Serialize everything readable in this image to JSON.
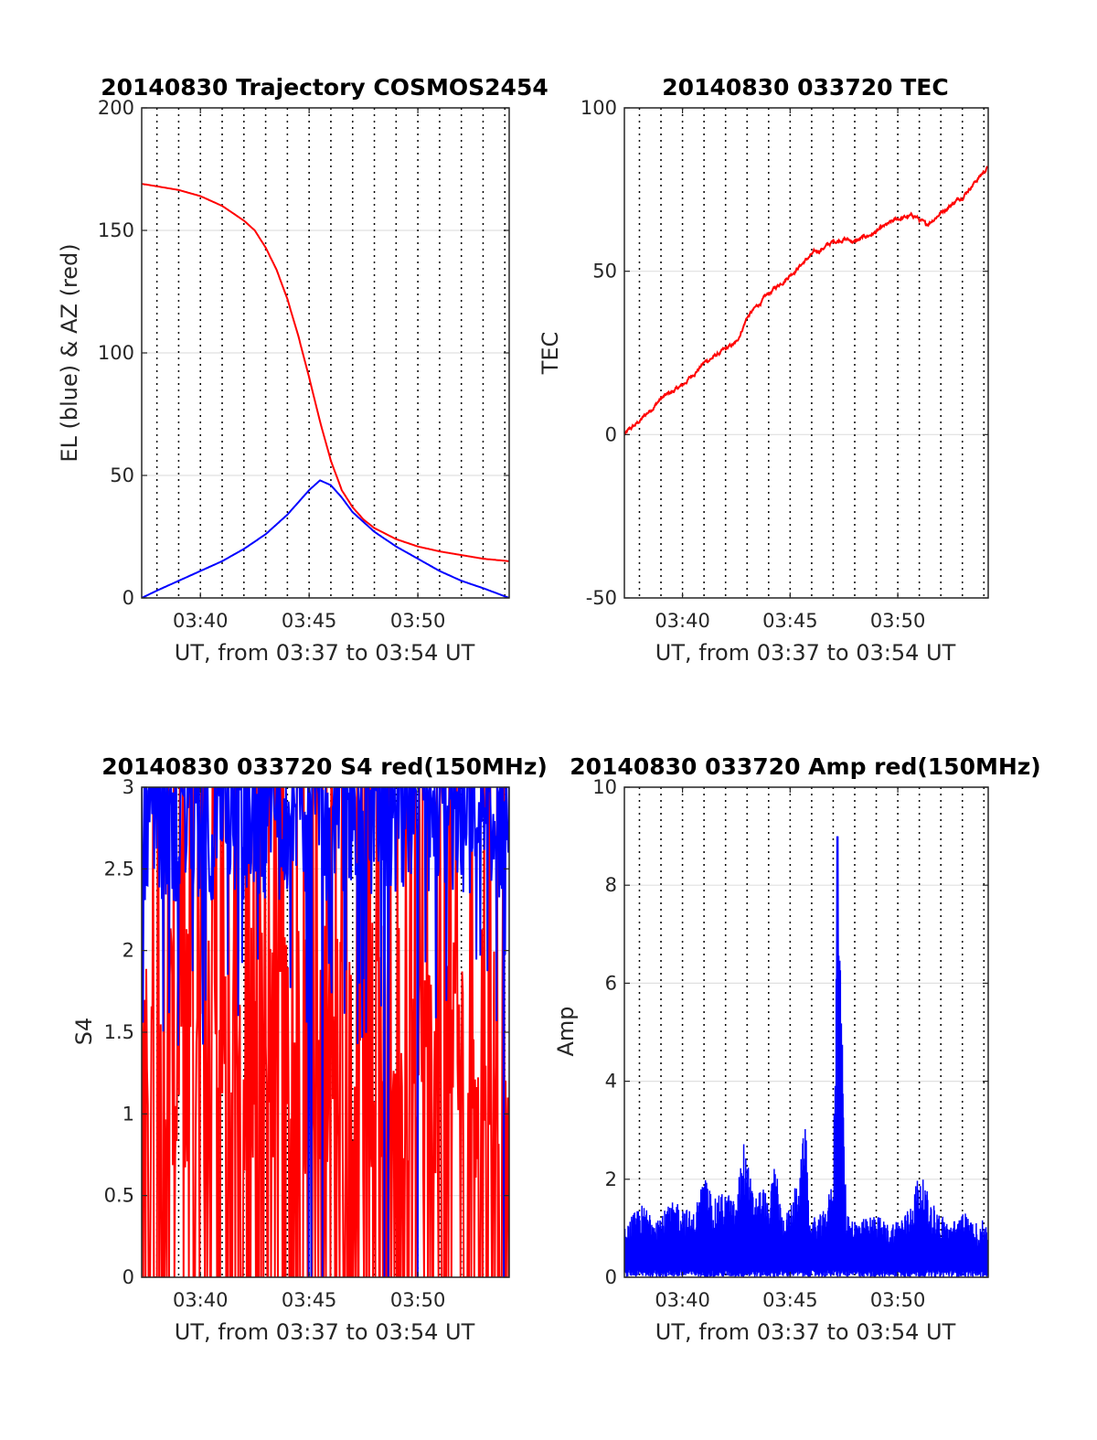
{
  "colors": {
    "el": "#0000ff",
    "az": "#ff0000",
    "tec": "#ff0000",
    "s4_red": "#ff0000",
    "s4_blue": "#0000ff",
    "amp": "#0000ff",
    "grid": "#e0e0e0",
    "dotted_grid": "#000000"
  },
  "chart_data": [
    {
      "type": "line",
      "title": "20140830 Trajectory COSMOS2454",
      "xlabel": "UT, from 03:37 to 03:54 UT",
      "ylabel": "EL (blue) & AZ (red)",
      "xlim": [
        37.3,
        54.2
      ],
      "ylim": [
        0,
        200
      ],
      "xticks": [
        40,
        45,
        50
      ],
      "xticklabels": [
        "03:40",
        "03:45",
        "03:50"
      ],
      "yticks": [
        0,
        50,
        100,
        150,
        200
      ],
      "yticklabels": [
        "0",
        "50",
        "100",
        "150",
        "200"
      ],
      "grid": "dotted vertical every minute, light horizontal at y ticks",
      "series": [
        {
          "color": "red",
          "x": [
            37.3,
            38,
            39,
            40,
            41,
            42,
            42.5,
            43,
            43.5,
            44,
            44.5,
            45,
            45.5,
            46,
            46.5,
            47,
            47.5,
            48,
            49,
            50,
            51,
            52,
            53,
            54.2
          ],
          "y": [
            169,
            168,
            166.5,
            164,
            160,
            154,
            150,
            143,
            134,
            122,
            107,
            90,
            72,
            56,
            44,
            37,
            32,
            28.5,
            24,
            21,
            19,
            17.5,
            16,
            15
          ]
        },
        {
          "color": "blue",
          "x": [
            37.3,
            38,
            39,
            40,
            41,
            42,
            43,
            44,
            44.5,
            45,
            45.5,
            46,
            46.5,
            47,
            48,
            49,
            50,
            51,
            52,
            53,
            54.2
          ],
          "y": [
            0,
            3,
            7,
            11,
            15,
            20,
            26,
            34,
            39,
            44,
            48,
            46,
            41,
            35,
            27,
            21,
            16,
            11,
            7,
            4,
            0
          ]
        }
      ]
    },
    {
      "type": "line",
      "title": "20140830 033720 TEC",
      "xlabel": "UT, from 03:37 to 03:54 UT",
      "ylabel": "TEC",
      "xlim": [
        37.3,
        54.2
      ],
      "ylim": [
        -50,
        100
      ],
      "xticks": [
        40,
        45,
        50
      ],
      "xticklabels": [
        "03:40",
        "03:45",
        "03:50"
      ],
      "yticks": [
        -50,
        0,
        50,
        100
      ],
      "yticklabels": [
        "-50",
        "0",
        "50",
        "100"
      ],
      "series": [
        {
          "color": "red",
          "x": [
            37.3,
            38,
            39,
            40,
            41,
            42,
            42.5,
            43,
            44,
            45,
            46,
            47,
            47.5,
            48,
            49,
            50,
            50.8,
            51.3,
            52,
            53,
            54.2
          ],
          "y": [
            0,
            4,
            11,
            15,
            22,
            26,
            28,
            36,
            43,
            49,
            55,
            59,
            60,
            59,
            62,
            66,
            67,
            64,
            68,
            73,
            82
          ]
        }
      ]
    },
    {
      "type": "line",
      "title": "20140830 033720 S4 red(150MHz)",
      "xlabel": "UT, from 03:37 to 03:54 UT",
      "ylabel": "S4",
      "xlim": [
        37.3,
        54.2
      ],
      "ylim": [
        0,
        3
      ],
      "xticks": [
        40,
        45,
        50
      ],
      "xticklabels": [
        "03:40",
        "03:45",
        "03:50"
      ],
      "yticks": [
        0,
        0.5,
        1,
        1.5,
        2,
        2.5,
        3
      ],
      "yticklabels": [
        "0",
        "0.5",
        "1",
        "1.5",
        "2",
        "2.5",
        "3"
      ],
      "series": [
        {
          "color": "red",
          "x": [
            37.3,
            54.2
          ],
          "y": [
            2.1,
            2.1
          ]
        },
        {
          "color": "blue",
          "x": [
            37.3,
            54.2
          ],
          "y": [
            2.7,
            2.7
          ]
        }
      ]
    },
    {
      "type": "line",
      "title": "20140830 033720 Amp red(150MHz)",
      "xlabel": "UT, from 03:37 to 03:54 UT",
      "ylabel": "Amp",
      "xlim": [
        37.3,
        54.2
      ],
      "ylim": [
        0,
        10
      ],
      "xticks": [
        40,
        45,
        50
      ],
      "xticklabels": [
        "03:40",
        "03:45",
        "03:50"
      ],
      "yticks": [
        0,
        2,
        4,
        6,
        8,
        10
      ],
      "yticklabels": [
        "0",
        "2",
        "4",
        "6",
        "8",
        "10"
      ],
      "series": [
        {
          "color": "blue",
          "x": [
            37.3,
            38,
            39,
            39.7,
            40.5,
            41,
            41.5,
            42,
            42.5,
            42.8,
            43.3,
            43.8,
            44,
            44.3,
            44.6,
            45,
            45.5,
            45.7,
            45.9,
            46.5,
            47,
            47.2,
            47.4,
            47.6,
            48,
            48.5,
            49,
            49.5,
            50,
            50.5,
            51,
            51.5,
            52,
            52.5,
            53,
            53.5,
            54.2
          ],
          "y": [
            1.0,
            1.5,
            1.3,
            1.6,
            1.3,
            2.1,
            1.6,
            1.8,
            1.5,
            2.9,
            1.7,
            1.9,
            1.4,
            2.5,
            1.3,
            1.4,
            2.4,
            3.3,
            1.2,
            1.3,
            2.0,
            9.0,
            5.3,
            1.4,
            1.2,
            1.2,
            1.3,
            1.1,
            1.2,
            1.4,
            2.2,
            1.6,
            1.3,
            1.1,
            1.4,
            1.1,
            1.2
          ]
        }
      ]
    }
  ]
}
